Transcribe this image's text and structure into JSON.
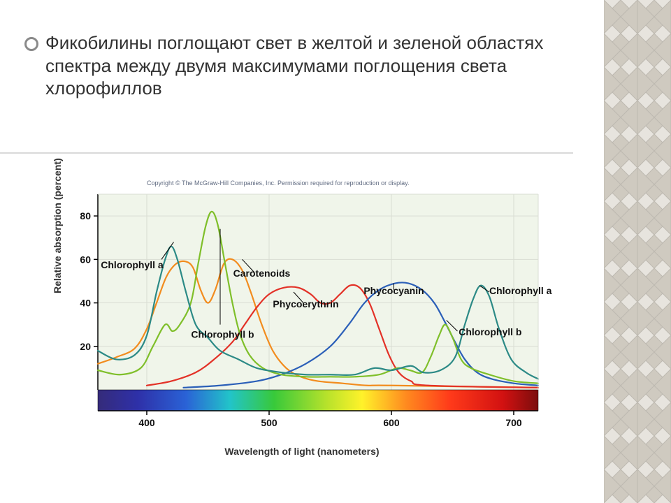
{
  "slide": {
    "bullet": "Фикобилины поглощают свет в желтой и зеленой областях спектра между двумя максимумами поглощения света хлорофиллов",
    "divider_color": "#d9d9d9",
    "sidebar": {
      "bg": "#e7e4de",
      "diamond_fill": "#cfcac0",
      "diamond_edge": "#bdb9b0"
    }
  },
  "copyright": "Copyright © The McGraw-Hill Companies, Inc. Permission required for reproduction or display.",
  "chart": {
    "type": "line",
    "xlabel": "Wavelength of light (nanometers)",
    "ylabel": "Relative absorption (percent)",
    "xlim": [
      360,
      720
    ],
    "ylim": [
      0,
      90
    ],
    "xticks": [
      400,
      500,
      600,
      700
    ],
    "yticks": [
      20,
      40,
      60,
      80
    ],
    "plot_bg": "#f0f5ea",
    "grid_color": "#d9ddd3",
    "axis_color": "#000000",
    "line_width": 2.2,
    "spectrum": {
      "stops": [
        {
          "p": 0.0,
          "c": "#352b7a"
        },
        {
          "p": 0.09,
          "c": "#2e30a8"
        },
        {
          "p": 0.2,
          "c": "#2a62d6"
        },
        {
          "p": 0.3,
          "c": "#22c4c9"
        },
        {
          "p": 0.4,
          "c": "#38c93a"
        },
        {
          "p": 0.52,
          "c": "#b7e22b"
        },
        {
          "p": 0.6,
          "c": "#fff22a"
        },
        {
          "p": 0.7,
          "c": "#ff8a1f"
        },
        {
          "p": 0.8,
          "c": "#ff3a1a"
        },
        {
          "p": 0.92,
          "c": "#d21111"
        },
        {
          "p": 1.0,
          "c": "#7b0d0d"
        }
      ]
    },
    "series": {
      "chl_a": {
        "label": "Chlorophyll a",
        "color": "#2c8a86",
        "points": [
          [
            360,
            18
          ],
          [
            375,
            14
          ],
          [
            390,
            16
          ],
          [
            400,
            25
          ],
          [
            408,
            45
          ],
          [
            415,
            60
          ],
          [
            420,
            66
          ],
          [
            425,
            60
          ],
          [
            432,
            45
          ],
          [
            440,
            30
          ],
          [
            450,
            24
          ],
          [
            460,
            18
          ],
          [
            475,
            14
          ],
          [
            490,
            10
          ],
          [
            510,
            8
          ],
          [
            530,
            7
          ],
          [
            550,
            7
          ],
          [
            570,
            7
          ],
          [
            586,
            10
          ],
          [
            600,
            9
          ],
          [
            616,
            11
          ],
          [
            626,
            8
          ],
          [
            640,
            9
          ],
          [
            652,
            15
          ],
          [
            660,
            30
          ],
          [
            667,
            42
          ],
          [
            673,
            48
          ],
          [
            680,
            43
          ],
          [
            688,
            28
          ],
          [
            698,
            14
          ],
          [
            710,
            8
          ],
          [
            720,
            5
          ]
        ]
      },
      "chl_b": {
        "label": "Chlorophyll b",
        "color": "#7fbf2a",
        "points": [
          [
            360,
            9
          ],
          [
            378,
            7
          ],
          [
            395,
            10
          ],
          [
            405,
            20
          ],
          [
            415,
            30
          ],
          [
            421,
            27
          ],
          [
            427,
            30
          ],
          [
            436,
            40
          ],
          [
            442,
            58
          ],
          [
            448,
            75
          ],
          [
            453,
            82
          ],
          [
            458,
            76
          ],
          [
            464,
            58
          ],
          [
            470,
            40
          ],
          [
            476,
            26
          ],
          [
            484,
            16
          ],
          [
            495,
            10
          ],
          [
            510,
            7
          ],
          [
            530,
            6
          ],
          [
            550,
            6
          ],
          [
            570,
            6
          ],
          [
            590,
            7
          ],
          [
            605,
            10
          ],
          [
            615,
            9
          ],
          [
            625,
            8
          ],
          [
            632,
            15
          ],
          [
            639,
            25
          ],
          [
            644,
            30
          ],
          [
            650,
            24
          ],
          [
            657,
            14
          ],
          [
            665,
            10
          ],
          [
            680,
            7
          ],
          [
            700,
            4
          ],
          [
            720,
            3
          ]
        ]
      },
      "carotenoids": {
        "label": "Carotenoids",
        "color": "#f28c1e",
        "points": [
          [
            360,
            12
          ],
          [
            375,
            15
          ],
          [
            390,
            19
          ],
          [
            400,
            28
          ],
          [
            408,
            40
          ],
          [
            416,
            52
          ],
          [
            424,
            58
          ],
          [
            432,
            59
          ],
          [
            438,
            56
          ],
          [
            444,
            46
          ],
          [
            450,
            40
          ],
          [
            456,
            46
          ],
          [
            463,
            58
          ],
          [
            470,
            60
          ],
          [
            478,
            55
          ],
          [
            485,
            45
          ],
          [
            494,
            30
          ],
          [
            503,
            18
          ],
          [
            514,
            10
          ],
          [
            526,
            6
          ],
          [
            540,
            4
          ],
          [
            560,
            3
          ],
          [
            580,
            2
          ],
          [
            600,
            2
          ],
          [
            720,
            1
          ]
        ]
      },
      "phycoerythrin": {
        "label": "Phycoerythrin",
        "color": "#e33127",
        "points": [
          [
            400,
            2
          ],
          [
            420,
            4
          ],
          [
            440,
            8
          ],
          [
            455,
            14
          ],
          [
            470,
            22
          ],
          [
            480,
            30
          ],
          [
            490,
            38
          ],
          [
            500,
            44
          ],
          [
            512,
            47
          ],
          [
            524,
            47
          ],
          [
            534,
            44
          ],
          [
            542,
            40
          ],
          [
            550,
            40
          ],
          [
            558,
            44
          ],
          [
            566,
            48
          ],
          [
            574,
            47
          ],
          [
            582,
            40
          ],
          [
            590,
            28
          ],
          [
            598,
            16
          ],
          [
            606,
            8
          ],
          [
            616,
            4
          ],
          [
            630,
            2
          ],
          [
            720,
            1
          ]
        ]
      },
      "phycocyanin": {
        "label": "Phycocyanin",
        "color": "#2b5fb8",
        "points": [
          [
            430,
            1
          ],
          [
            460,
            2
          ],
          [
            490,
            4
          ],
          [
            510,
            7
          ],
          [
            530,
            12
          ],
          [
            550,
            20
          ],
          [
            565,
            30
          ],
          [
            578,
            40
          ],
          [
            590,
            46
          ],
          [
            603,
            49
          ],
          [
            614,
            49
          ],
          [
            625,
            46
          ],
          [
            635,
            40
          ],
          [
            643,
            32
          ],
          [
            652,
            22
          ],
          [
            660,
            14
          ],
          [
            670,
            8
          ],
          [
            682,
            5
          ],
          [
            700,
            3
          ],
          [
            720,
            2
          ]
        ]
      }
    },
    "callouts": [
      {
        "text": "Chlorophyll b",
        "tx": 462,
        "ty": 24,
        "lx1": 460,
        "ly1": 74,
        "lx2": 460,
        "ly2": 30
      },
      {
        "text": "Chlorophyll a",
        "tx": 388,
        "ty": 56,
        "lx1": 422,
        "ly1": 68,
        "lx2": 412,
        "ly2": 60
      },
      {
        "text": "Carotenoids",
        "tx": 494,
        "ty": 52,
        "lx1": 478,
        "ly1": 60,
        "lx2": 488,
        "ly2": 54
      },
      {
        "text": "Phycoerythrin",
        "tx": 530,
        "ty": 38,
        "lx1": 520,
        "ly1": 45,
        "lx2": 528,
        "ly2": 40
      },
      {
        "text": "Phycocyanin",
        "tx": 602,
        "ty": 44,
        "lx1": 602,
        "ly1": 49,
        "lx2": 602,
        "ly2": 46
      },
      {
        "text": "Chlorophyll b",
        "tx": 655,
        "ty": 25,
        "lx1": 645,
        "ly1": 32,
        "lx2": 654,
        "ly2": 27,
        "align": "start"
      },
      {
        "text": "Chlorophyll a",
        "tx": 680,
        "ty": 44,
        "lx1": 672,
        "ly1": 48,
        "lx2": 680,
        "ly2": 45,
        "align": "start"
      }
    ],
    "title_fontsize": 14,
    "tick_fontsize": 14
  }
}
